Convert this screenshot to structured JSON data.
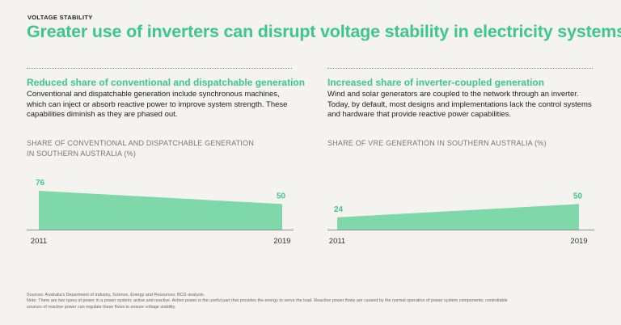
{
  "kicker": "VOLTAGE STABILITY",
  "title": "Greater use of inverters can disrupt voltage stability in electricity systems",
  "left": {
    "heading": "Reduced share of conventional and dispatchable generation",
    "body": "Conventional and dispatchable generation include synchronous machines, which can inject or absorb reactive power to improve system strength. These capabilities diminish as they are phased out.",
    "chart_title_line1": "SHARE OF CONVENTIONAL AND DISPATCHABLE GENERATION",
    "chart_title_line2": "IN SOUTHERN AUSTRALIA (%)"
  },
  "right": {
    "heading": "Increased share of inverter-coupled generation",
    "body": "Wind and solar generators are coupled to the network through an inverter. Today, by default, most designs and implementations lack the control systems and hardware that provide reactive power capabilities.",
    "chart_title_line1": "SHARE OF VRE GENERATION IN SOUTHERN AUSTRALIA (%)"
  },
  "chart_data": [
    {
      "type": "area",
      "title": "SHARE OF CONVENTIONAL AND DISPATCHABLE GENERATION IN SOUTHERN AUSTRALIA (%)",
      "x": [
        "2011",
        "2019"
      ],
      "values": [
        76,
        50
      ],
      "value_labels": [
        "76",
        "50"
      ],
      "ylim": [
        0,
        76
      ],
      "color": "#7fd8a9",
      "label_color": "#3fc68d"
    },
    {
      "type": "area",
      "title": "SHARE OF VRE GENERATION IN SOUTHERN AUSTRALIA (%)",
      "x": [
        "2011",
        "2019"
      ],
      "values": [
        24,
        50
      ],
      "value_labels": [
        "24",
        "50"
      ],
      "ylim": [
        0,
        76
      ],
      "color": "#7fd8a9",
      "label_color": "#3fc68d"
    }
  ],
  "footnote": {
    "sources": "Sources: Australia's Department of Industry, Science, Energy and Resources; BCG analysis.",
    "note_line1": "Note: There are two types of power in a power system: active and reactive. Active power is the useful part that provides the energy to serve the load. Reactive power flows are caused by the normal operation of power system components; controllable",
    "note_line2": "sources of reactive power can regulate these flows to ensure voltage stability."
  }
}
